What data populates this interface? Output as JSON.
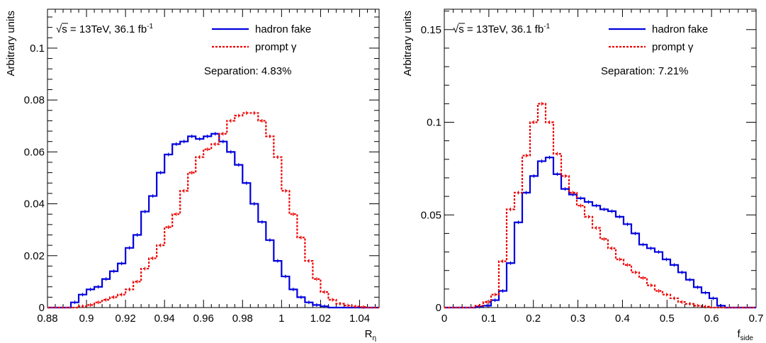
{
  "chart_data": [
    {
      "type": "line",
      "ylabel": "Arbitrary units",
      "xlabel": "R",
      "xlabel_sub": "η",
      "xlim": [
        0.88,
        1.05
      ],
      "ylim": [
        0,
        0.115
      ],
      "xticks": [
        0.88,
        0.9,
        0.92,
        0.94,
        0.96,
        0.98,
        1,
        1.02,
        1.04
      ],
      "yticks": [
        0,
        0.02,
        0.04,
        0.06,
        0.08,
        0.1
      ],
      "xtick_labels": [
        "0.88",
        "0.9",
        "0.92",
        "0.94",
        "0.96",
        "0.98",
        "1",
        "1.02",
        "1.04"
      ],
      "ytick_labels": [
        "0",
        "0.02",
        "0.04",
        "0.06",
        "0.08",
        "0.1"
      ],
      "annotation": {
        "sqrt_prefix": "√",
        "energy_text": "s = 13TeV, 36.1 fb",
        "lumi_sup": "-1",
        "separation": "Separation: 4.83%"
      },
      "legend_position": "top-right",
      "grid": false,
      "bin_width": 0.004,
      "series": [
        {
          "name": "hadron fake",
          "color": "#0000dd",
          "style": "solid",
          "x": [
            0.88,
            0.884,
            0.888,
            0.892,
            0.896,
            0.9,
            0.904,
            0.908,
            0.912,
            0.916,
            0.92,
            0.924,
            0.928,
            0.932,
            0.936,
            0.94,
            0.944,
            0.948,
            0.952,
            0.956,
            0.96,
            0.964,
            0.968,
            0.972,
            0.976,
            0.98,
            0.984,
            0.988,
            0.992,
            0.996,
            1.0,
            1.004,
            1.008,
            1.012,
            1.016,
            1.02,
            1.024,
            1.028,
            1.032,
            1.036,
            1.04,
            1.044,
            1.048
          ],
          "y": [
            0,
            0,
            0,
            0.002,
            0.005,
            0.007,
            0.008,
            0.011,
            0.014,
            0.017,
            0.023,
            0.028,
            0.037,
            0.043,
            0.052,
            0.059,
            0.063,
            0.064,
            0.066,
            0.065,
            0.066,
            0.067,
            0.064,
            0.06,
            0.055,
            0.048,
            0.04,
            0.033,
            0.026,
            0.018,
            0.012,
            0.007,
            0.004,
            0.002,
            0.001,
            0.0005,
            0,
            0,
            0,
            0,
            0,
            0,
            0
          ]
        },
        {
          "name": "prompt γ",
          "color": "#ee0000",
          "style": "dashed",
          "x": [
            0.88,
            0.884,
            0.888,
            0.892,
            0.896,
            0.9,
            0.904,
            0.908,
            0.912,
            0.916,
            0.92,
            0.924,
            0.928,
            0.932,
            0.936,
            0.94,
            0.944,
            0.948,
            0.952,
            0.956,
            0.96,
            0.964,
            0.968,
            0.972,
            0.976,
            0.98,
            0.984,
            0.988,
            0.992,
            0.996,
            1.0,
            1.004,
            1.008,
            1.012,
            1.016,
            1.02,
            1.024,
            1.028,
            1.032,
            1.036,
            1.04,
            1.044,
            1.048
          ],
          "y": [
            0,
            0,
            0,
            0,
            0.0005,
            0.001,
            0.002,
            0.003,
            0.004,
            0.005,
            0.007,
            0.01,
            0.015,
            0.019,
            0.024,
            0.031,
            0.036,
            0.045,
            0.052,
            0.058,
            0.061,
            0.063,
            0.067,
            0.072,
            0.074,
            0.075,
            0.075,
            0.072,
            0.066,
            0.058,
            0.045,
            0.036,
            0.027,
            0.018,
            0.011,
            0.006,
            0.003,
            0.0015,
            0.0008,
            0.0004,
            0.0002,
            0,
            0
          ]
        }
      ]
    },
    {
      "type": "line",
      "ylabel": "Arbitrary units",
      "xlabel": "f",
      "xlabel_sub": "side",
      "xlim": [
        0,
        0.7
      ],
      "ylim": [
        0,
        0.161
      ],
      "xticks": [
        0,
        0.1,
        0.2,
        0.3,
        0.4,
        0.5,
        0.6,
        0.7
      ],
      "yticks": [
        0,
        0.05,
        0.1,
        0.15
      ],
      "xtick_labels": [
        "0",
        "0.1",
        "0.2",
        "0.3",
        "0.4",
        "0.5",
        "0.6",
        "0.7"
      ],
      "ytick_labels": [
        "0",
        "0.05",
        "0.1",
        "0.15"
      ],
      "annotation": {
        "sqrt_prefix": "√",
        "energy_text": "s = 13TeV, 36.1 fb",
        "lumi_sup": "-1",
        "separation": "Separation: 7.21%"
      },
      "legend_position": "top-right",
      "grid": false,
      "bin_width": 0.0175,
      "series": [
        {
          "name": "hadron fake",
          "color": "#0000dd",
          "style": "solid",
          "x": [
            0,
            0.0175,
            0.035,
            0.0525,
            0.07,
            0.0875,
            0.105,
            0.1225,
            0.14,
            0.1575,
            0.175,
            0.1925,
            0.21,
            0.2275,
            0.245,
            0.2625,
            0.28,
            0.2975,
            0.315,
            0.3325,
            0.35,
            0.3675,
            0.385,
            0.4025,
            0.42,
            0.4375,
            0.455,
            0.4725,
            0.49,
            0.5075,
            0.525,
            0.5425,
            0.56,
            0.5775,
            0.595,
            0.6125,
            0.63,
            0.6475,
            0.665,
            0.6825
          ],
          "y": [
            0,
            0,
            0,
            0,
            0.0005,
            0.001,
            0.004,
            0.009,
            0.024,
            0.046,
            0.062,
            0.071,
            0.079,
            0.081,
            0.072,
            0.064,
            0.061,
            0.059,
            0.057,
            0.055,
            0.053,
            0.052,
            0.049,
            0.045,
            0.04,
            0.034,
            0.032,
            0.03,
            0.026,
            0.023,
            0.019,
            0.015,
            0.011,
            0.008,
            0.005,
            0.001,
            0,
            0,
            0,
            0
          ]
        },
        {
          "name": "prompt γ",
          "color": "#ee0000",
          "style": "dashed",
          "x": [
            0,
            0.0175,
            0.035,
            0.0525,
            0.07,
            0.0875,
            0.105,
            0.1225,
            0.14,
            0.1575,
            0.175,
            0.1925,
            0.21,
            0.2275,
            0.245,
            0.2625,
            0.28,
            0.2975,
            0.315,
            0.3325,
            0.35,
            0.3675,
            0.385,
            0.4025,
            0.42,
            0.4375,
            0.455,
            0.4725,
            0.49,
            0.5075,
            0.525,
            0.5425,
            0.56,
            0.5775,
            0.595,
            0.6125,
            0.63,
            0.6475,
            0.665,
            0.6825
          ],
          "y": [
            0,
            0,
            0,
            0,
            0.001,
            0.003,
            0.007,
            0.025,
            0.053,
            0.062,
            0.082,
            0.1,
            0.11,
            0.1,
            0.083,
            0.071,
            0.062,
            0.055,
            0.049,
            0.043,
            0.037,
            0.032,
            0.026,
            0.023,
            0.019,
            0.016,
            0.012,
            0.009,
            0.007,
            0.005,
            0.003,
            0.002,
            0.001,
            0.0005,
            0,
            0,
            0,
            0,
            0,
            0
          ]
        }
      ]
    }
  ]
}
